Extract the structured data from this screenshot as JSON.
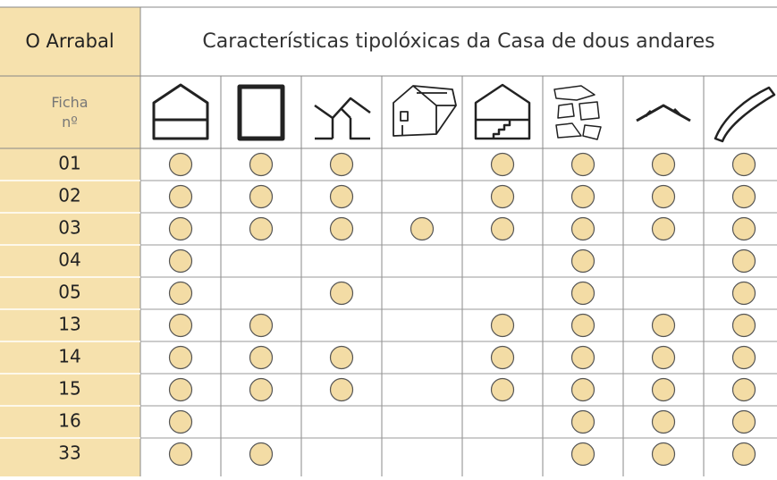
{
  "header": {
    "place": "O Arrabal",
    "title": "Características tipolóxicas da Casa de dous andares",
    "ficha_label": "Ficha\nnº"
  },
  "table": {
    "rows": [
      {
        "id": "01",
        "marks": [
          true,
          true,
          true,
          false,
          true,
          true,
          true,
          true
        ]
      },
      {
        "id": "02",
        "marks": [
          true,
          true,
          true,
          false,
          true,
          true,
          true,
          true
        ]
      },
      {
        "id": "03",
        "marks": [
          true,
          true,
          true,
          true,
          true,
          true,
          true,
          true
        ]
      },
      {
        "id": "04",
        "marks": [
          true,
          false,
          false,
          false,
          false,
          true,
          false,
          true
        ]
      },
      {
        "id": "05",
        "marks": [
          true,
          false,
          true,
          false,
          false,
          true,
          false,
          true
        ]
      },
      {
        "id": "13",
        "marks": [
          true,
          true,
          false,
          false,
          true,
          true,
          true,
          true
        ]
      },
      {
        "id": "14",
        "marks": [
          true,
          true,
          true,
          false,
          true,
          true,
          true,
          true
        ]
      },
      {
        "id": "15",
        "marks": [
          true,
          true,
          true,
          false,
          true,
          true,
          true,
          true
        ]
      },
      {
        "id": "16",
        "marks": [
          true,
          false,
          false,
          false,
          false,
          true,
          true,
          true
        ]
      },
      {
        "id": "33",
        "marks": [
          true,
          true,
          false,
          false,
          false,
          true,
          true,
          true
        ]
      }
    ]
  }
}
